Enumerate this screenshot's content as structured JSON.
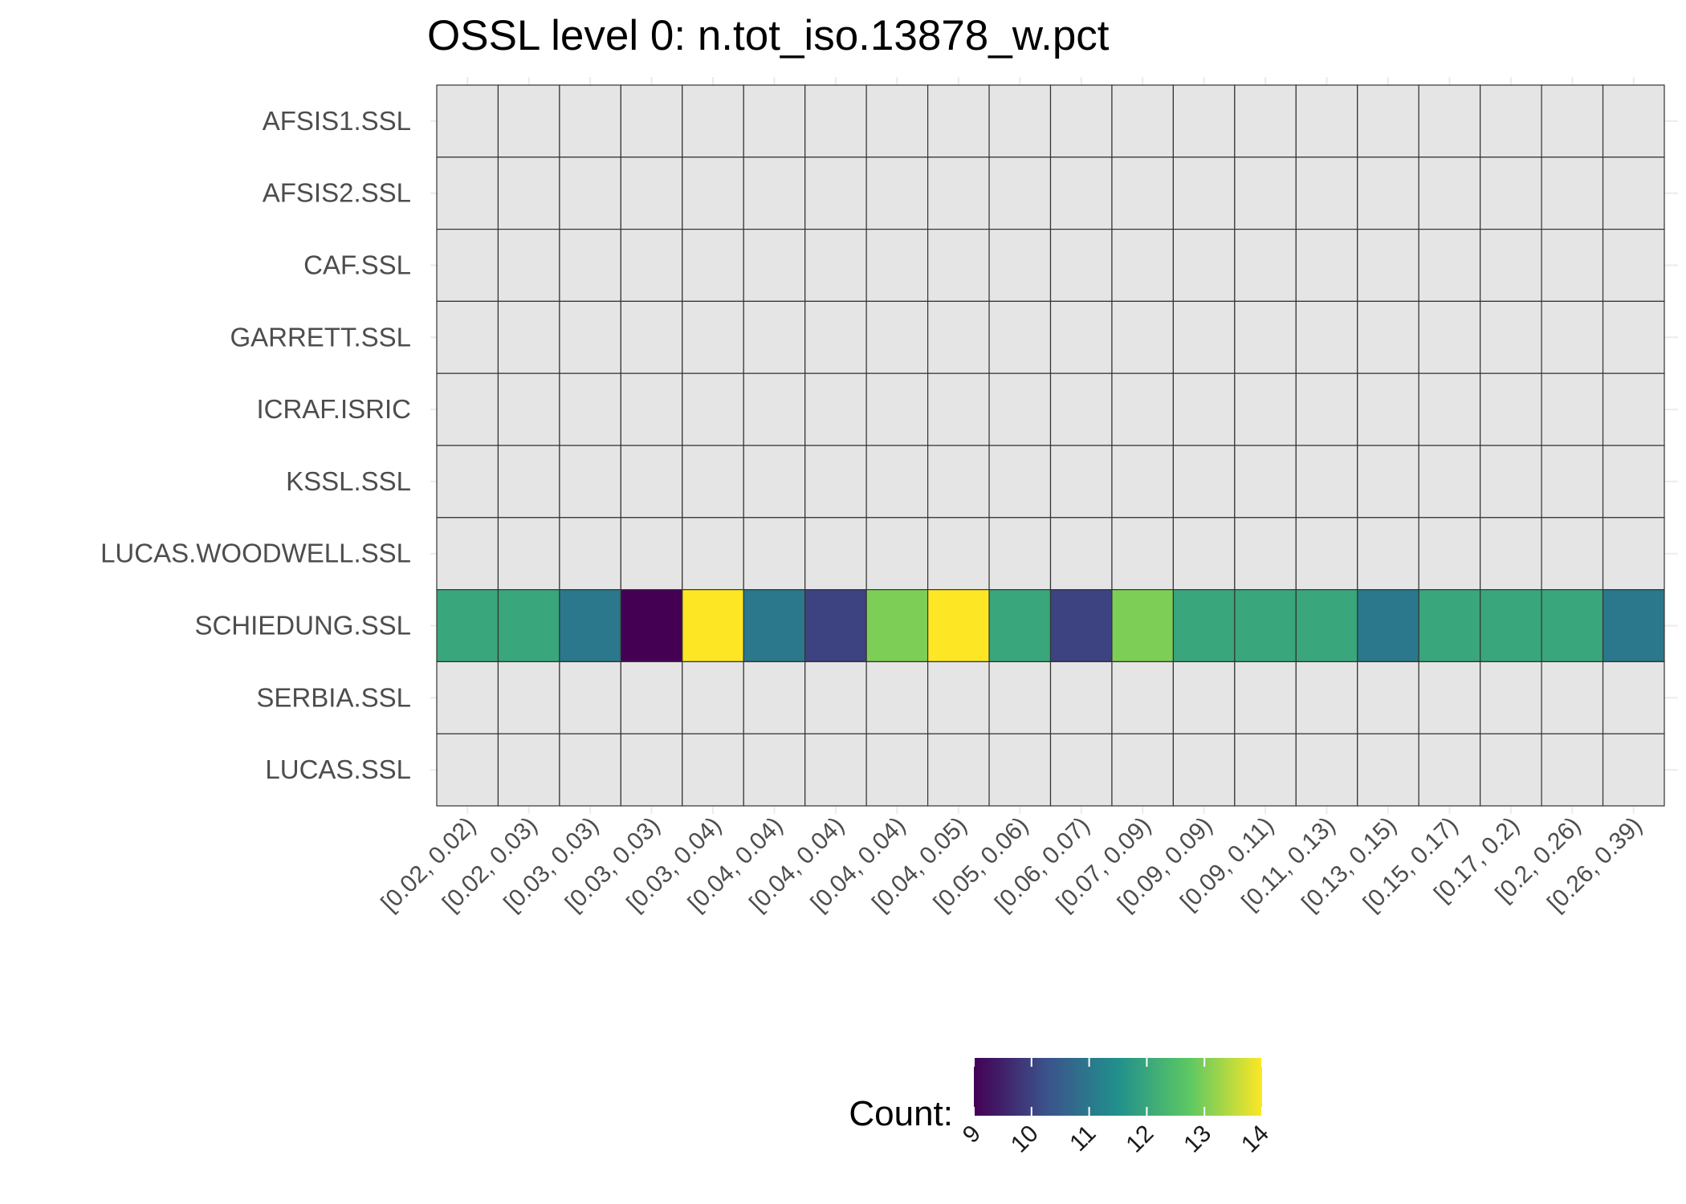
{
  "chart_data": {
    "type": "heatmap",
    "title": "OSSL level 0: n.tot_iso.13878_w.pct",
    "xlabel": "",
    "ylabel": "",
    "x_categories": [
      "[0.02, 0.02)",
      "[0.02, 0.03)",
      "[0.03, 0.03)",
      "[0.03, 0.03)",
      "[0.03, 0.04)",
      "[0.04, 0.04)",
      "[0.04, 0.04)",
      "[0.04, 0.04)",
      "[0.04, 0.05)",
      "[0.05, 0.06)",
      "[0.06, 0.07)",
      "[0.07, 0.09)",
      "[0.09, 0.09)",
      "[0.09, 0.11)",
      "[0.11, 0.13)",
      "[0.13, 0.15)",
      "[0.15, 0.17)",
      "[0.17, 0.2)",
      "[0.2, 0.26)",
      "[0.26, 0.39)"
    ],
    "y_categories": [
      "AFSIS1.SSL",
      "AFSIS2.SSL",
      "CAF.SSL",
      "GARRETT.SSL",
      "ICRAF.ISRIC",
      "KSSL.SSL",
      "LUCAS.WOODWELL.SSL",
      "SCHIEDUNG.SSL",
      "SERBIA.SSL",
      "LUCAS.SSL"
    ],
    "values": [
      [
        null,
        null,
        null,
        null,
        null,
        null,
        null,
        null,
        null,
        null,
        null,
        null,
        null,
        null,
        null,
        null,
        null,
        null,
        null,
        null
      ],
      [
        null,
        null,
        null,
        null,
        null,
        null,
        null,
        null,
        null,
        null,
        null,
        null,
        null,
        null,
        null,
        null,
        null,
        null,
        null,
        null
      ],
      [
        null,
        null,
        null,
        null,
        null,
        null,
        null,
        null,
        null,
        null,
        null,
        null,
        null,
        null,
        null,
        null,
        null,
        null,
        null,
        null
      ],
      [
        null,
        null,
        null,
        null,
        null,
        null,
        null,
        null,
        null,
        null,
        null,
        null,
        null,
        null,
        null,
        null,
        null,
        null,
        null,
        null
      ],
      [
        null,
        null,
        null,
        null,
        null,
        null,
        null,
        null,
        null,
        null,
        null,
        null,
        null,
        null,
        null,
        null,
        null,
        null,
        null,
        null
      ],
      [
        null,
        null,
        null,
        null,
        null,
        null,
        null,
        null,
        null,
        null,
        null,
        null,
        null,
        null,
        null,
        null,
        null,
        null,
        null,
        null
      ],
      [
        null,
        null,
        null,
        null,
        null,
        null,
        null,
        null,
        null,
        null,
        null,
        null,
        null,
        null,
        null,
        null,
        null,
        null,
        null,
        null
      ],
      [
        12,
        12,
        11,
        9,
        14,
        11,
        10,
        13,
        14,
        12,
        10,
        13,
        12,
        12,
        12,
        11,
        12,
        12,
        12,
        11
      ],
      [
        null,
        null,
        null,
        null,
        null,
        null,
        null,
        null,
        null,
        null,
        null,
        null,
        null,
        null,
        null,
        null,
        null,
        null,
        null,
        null
      ],
      [
        null,
        null,
        null,
        null,
        null,
        null,
        null,
        null,
        null,
        null,
        null,
        null,
        null,
        null,
        null,
        null,
        null,
        null,
        null,
        null
      ]
    ],
    "missing_color": "#e5e5e5",
    "colorscale": "viridis",
    "colorscale_stops": [
      "#440154",
      "#3b528b",
      "#21908c",
      "#5dc863",
      "#fde725"
    ],
    "value_range": [
      9,
      14
    ],
    "legend": {
      "title": "Count:",
      "position": "bottom",
      "ticks": [
        9,
        10,
        11,
        12,
        13,
        14
      ]
    },
    "grid": false
  }
}
